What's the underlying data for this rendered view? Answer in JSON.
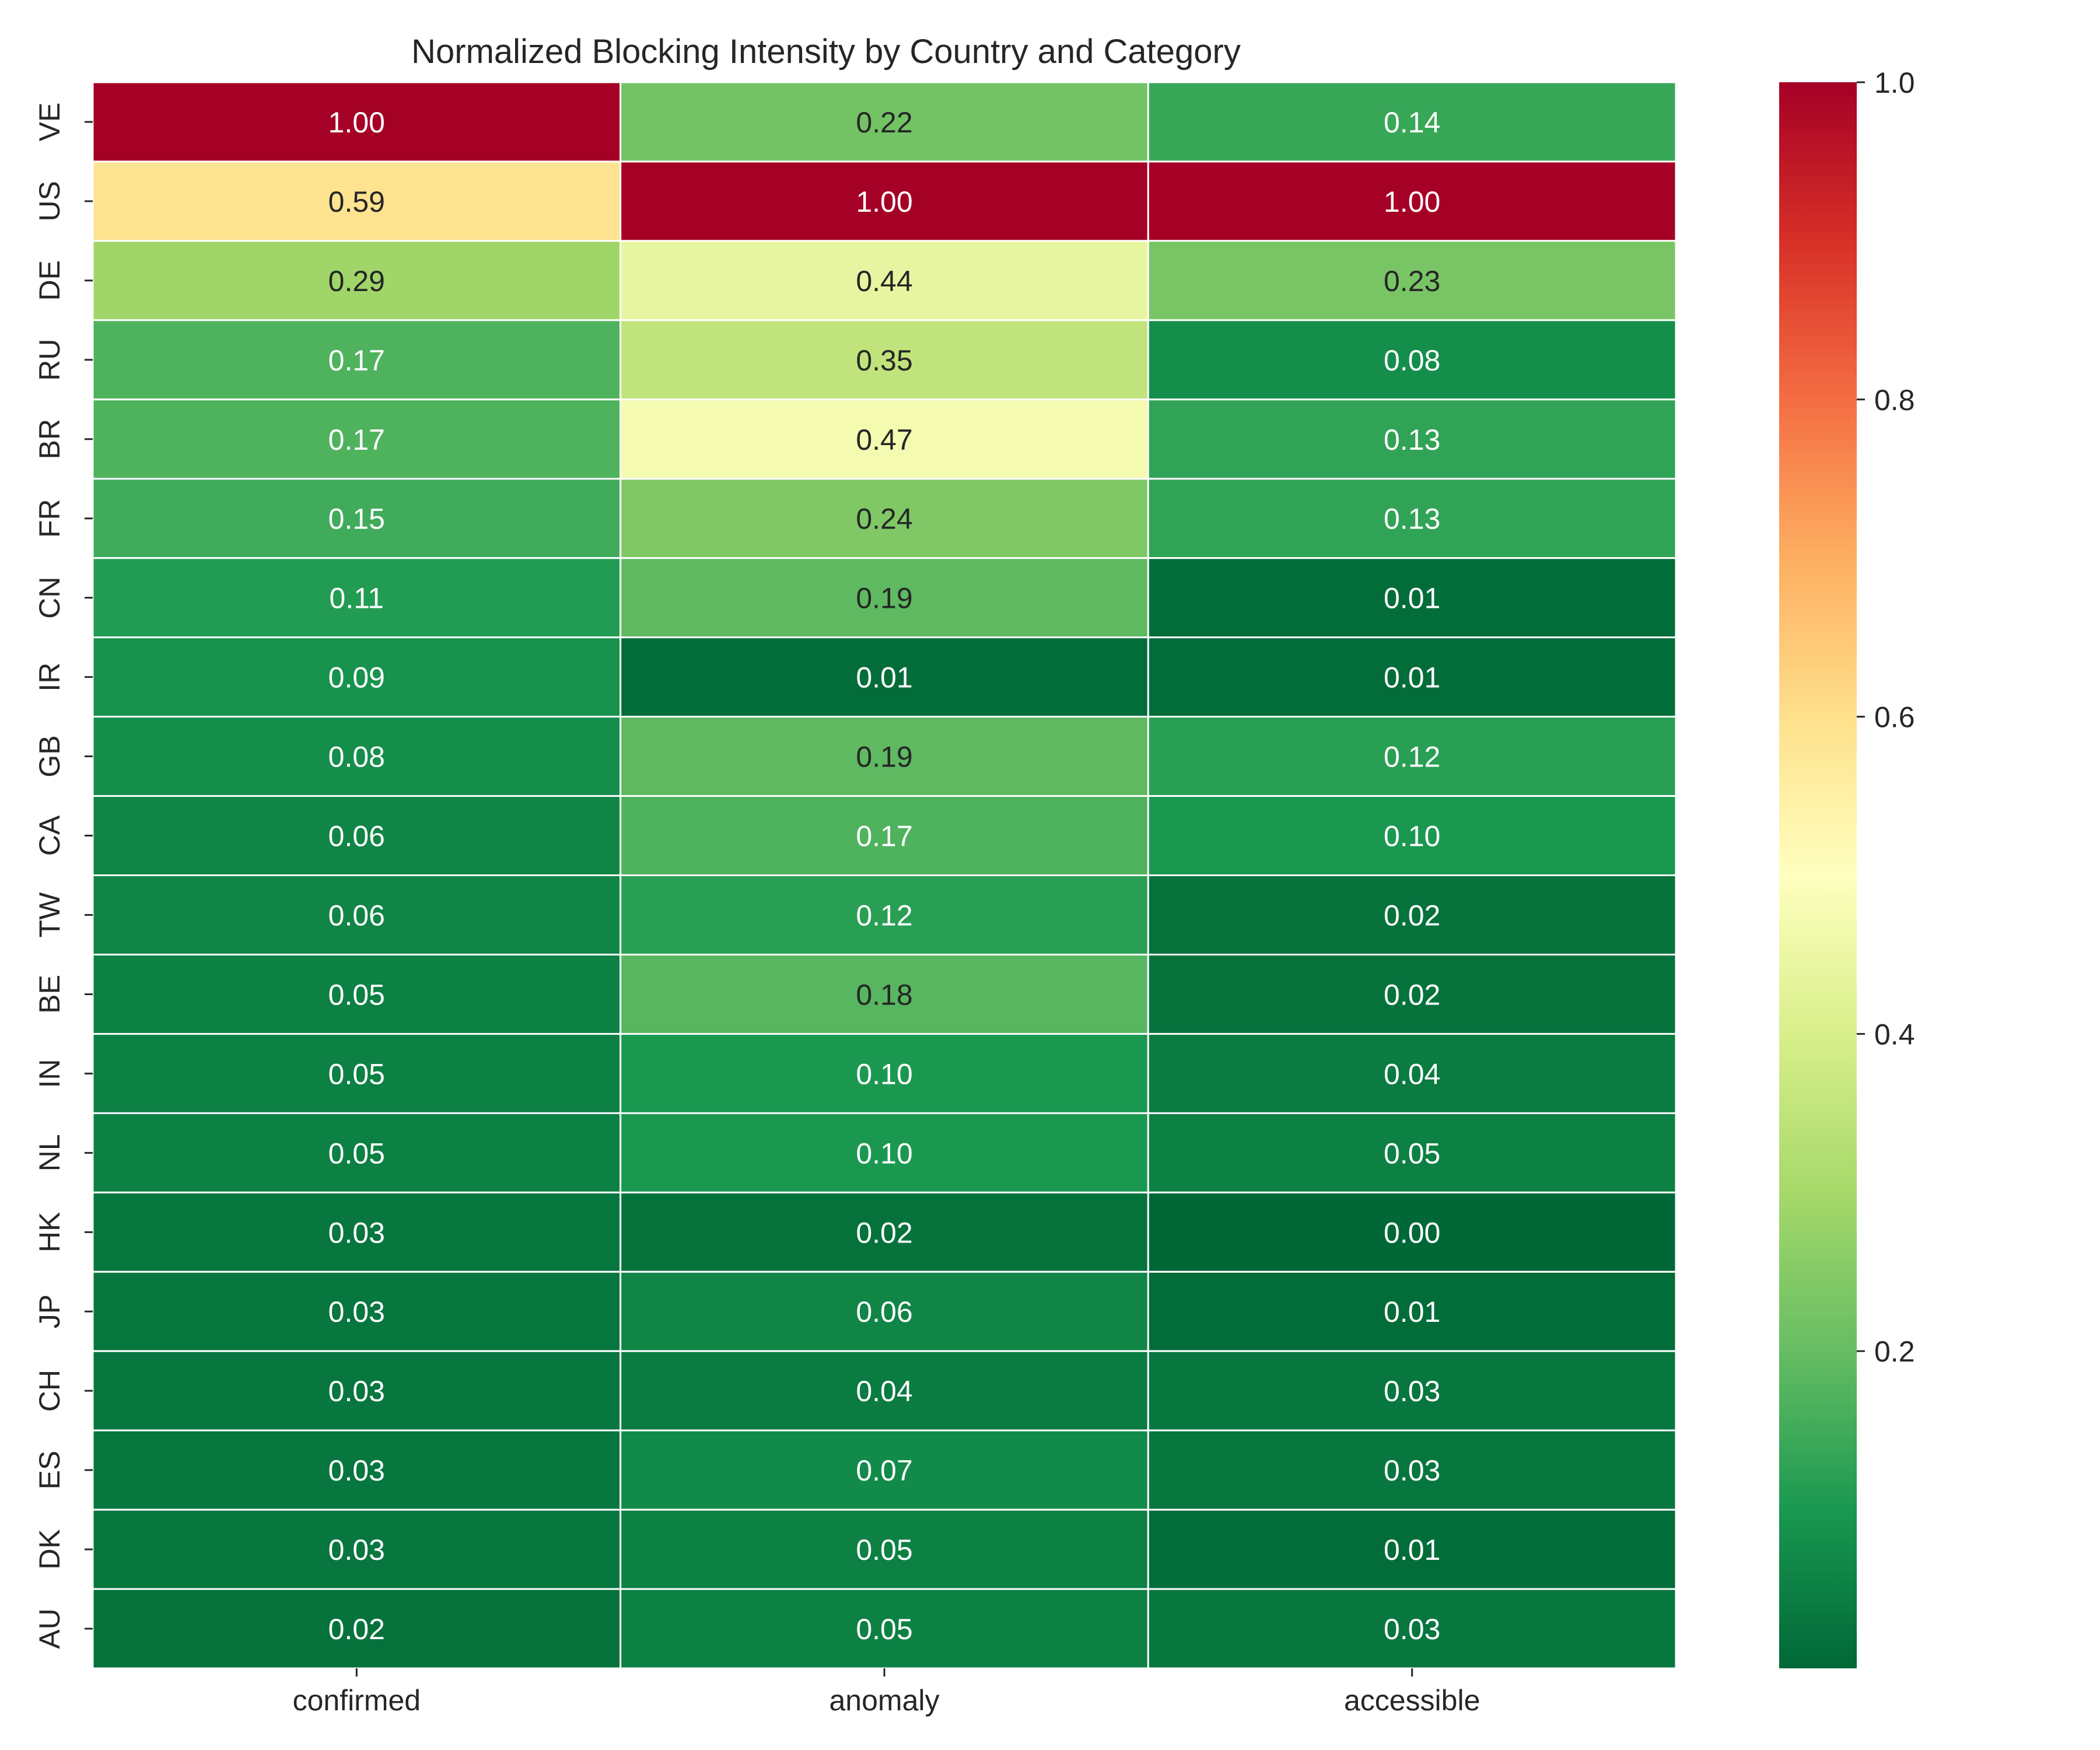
{
  "chart_data": {
    "type": "heatmap",
    "title": "Normalized Blocking Intensity by Country and Category",
    "xlabel": "",
    "ylabel": "",
    "columns": [
      "confirmed",
      "anomaly",
      "accessible"
    ],
    "rows": [
      "VE",
      "US",
      "DE",
      "RU",
      "BR",
      "FR",
      "CN",
      "IR",
      "GB",
      "CA",
      "TW",
      "BE",
      "IN",
      "NL",
      "HK",
      "JP",
      "CH",
      "ES",
      "DK",
      "AU"
    ],
    "values": [
      [
        1.0,
        0.22,
        0.14
      ],
      [
        0.59,
        1.0,
        1.0
      ],
      [
        0.29,
        0.44,
        0.23
      ],
      [
        0.17,
        0.35,
        0.08
      ],
      [
        0.17,
        0.47,
        0.13
      ],
      [
        0.15,
        0.24,
        0.13
      ],
      [
        0.11,
        0.19,
        0.01
      ],
      [
        0.09,
        0.01,
        0.01
      ],
      [
        0.08,
        0.19,
        0.12
      ],
      [
        0.06,
        0.17,
        0.1
      ],
      [
        0.06,
        0.12,
        0.02
      ],
      [
        0.05,
        0.18,
        0.02
      ],
      [
        0.05,
        0.1,
        0.04
      ],
      [
        0.05,
        0.1,
        0.05
      ],
      [
        0.03,
        0.02,
        0.0
      ],
      [
        0.03,
        0.06,
        0.01
      ],
      [
        0.03,
        0.04,
        0.03
      ],
      [
        0.03,
        0.07,
        0.03
      ],
      [
        0.03,
        0.05,
        0.01
      ],
      [
        0.02,
        0.05,
        0.03
      ]
    ],
    "colormap": "RdYlGn_r",
    "colorbar": {
      "vmin": 0.0,
      "vmax": 1.0,
      "ticks": [
        "0.2",
        "0.4",
        "0.6",
        "0.8",
        "1.0"
      ]
    },
    "annotations": true,
    "grid": false,
    "cell_border_color": "#ffffff"
  }
}
